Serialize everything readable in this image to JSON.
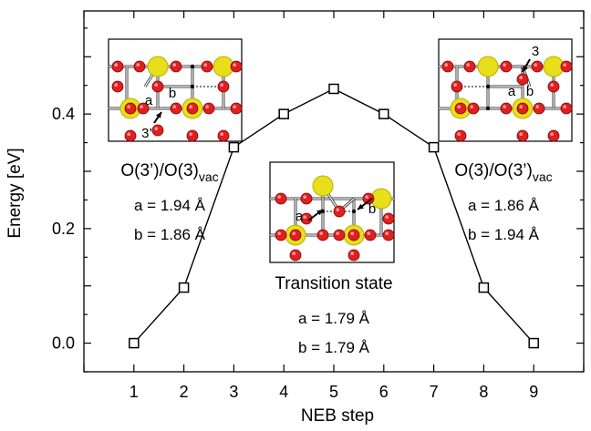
{
  "chart_data": {
    "type": "line",
    "xlabel": "NEB step",
    "ylabel": "Energy [eV]",
    "x": [
      1,
      2,
      3,
      4,
      5,
      6,
      7,
      8,
      9
    ],
    "y": [
      0.0,
      0.097,
      0.342,
      0.4,
      0.444,
      0.4,
      0.342,
      0.097,
      0.0
    ],
    "xlim": [
      0,
      10
    ],
    "ylim": [
      -0.05,
      0.58
    ],
    "xticks": [
      1,
      2,
      3,
      4,
      5,
      6,
      7,
      8,
      9
    ],
    "yticks": [
      0.0,
      0.2,
      0.4
    ],
    "ytick_labels": [
      "0.0",
      "0.2",
      "0.4"
    ],
    "marker": "open-square",
    "line_color": "#000000",
    "grid": false,
    "legend": "none",
    "annotations": [
      {
        "name": "initial",
        "state_main": "O(3’)/O(3)",
        "state_sub": "vac",
        "bond_a": "a = 1.94 Å",
        "bond_b": "b = 1.86 Å",
        "inset_labels": [
          "a",
          "b",
          "3’"
        ]
      },
      {
        "name": "transition",
        "state_main": "Transition state",
        "state_sub": "",
        "bond_a": "a = 1.79 Å",
        "bond_b": "b = 1.79 Å",
        "inset_labels": [
          "a",
          "b"
        ]
      },
      {
        "name": "final",
        "state_main": "O(3)/O(3’)",
        "state_sub": "vac",
        "bond_a": "a = 1.86 Å",
        "bond_b": "b = 1.94 Å",
        "inset_labels": [
          "3",
          "a",
          "b"
        ]
      }
    ],
    "atom_colors": {
      "large_atom": "#e8df1a",
      "small_atom": "#e02020",
      "highlight": "#b8b000",
      "bond": "#333333"
    }
  }
}
